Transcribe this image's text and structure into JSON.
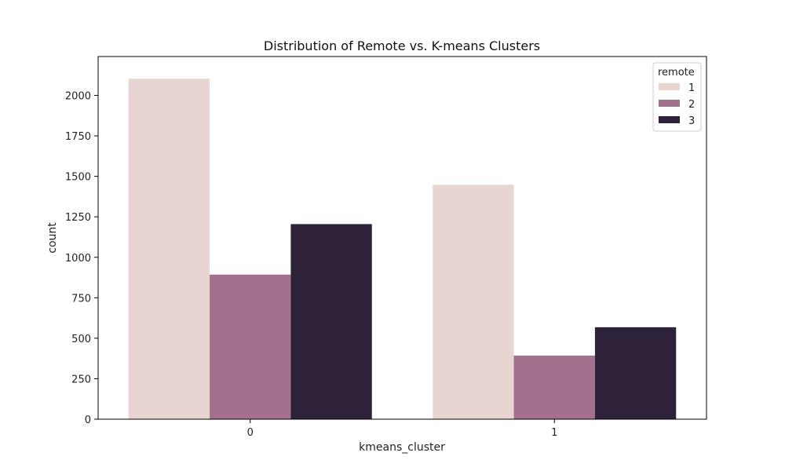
{
  "chart_data": {
    "type": "bar",
    "title": "Distribution of Remote vs. K-means Clusters",
    "xlabel": "kmeans_cluster",
    "ylabel": "count",
    "categories": [
      "0",
      "1"
    ],
    "series": [
      {
        "name": "1",
        "color": "#e8d4d0",
        "values": [
          2103,
          1448
        ]
      },
      {
        "name": "2",
        "color": "#a3708d",
        "values": [
          893,
          393
        ]
      },
      {
        "name": "3",
        "color": "#2e213a",
        "values": [
          1205,
          568
        ]
      }
    ],
    "ylim": [
      0,
      2240
    ],
    "yticks": [
      0,
      250,
      500,
      750,
      1000,
      1250,
      1500,
      1750,
      2000
    ],
    "grid": false,
    "legend": {
      "title": "remote",
      "position": "top-right"
    }
  }
}
